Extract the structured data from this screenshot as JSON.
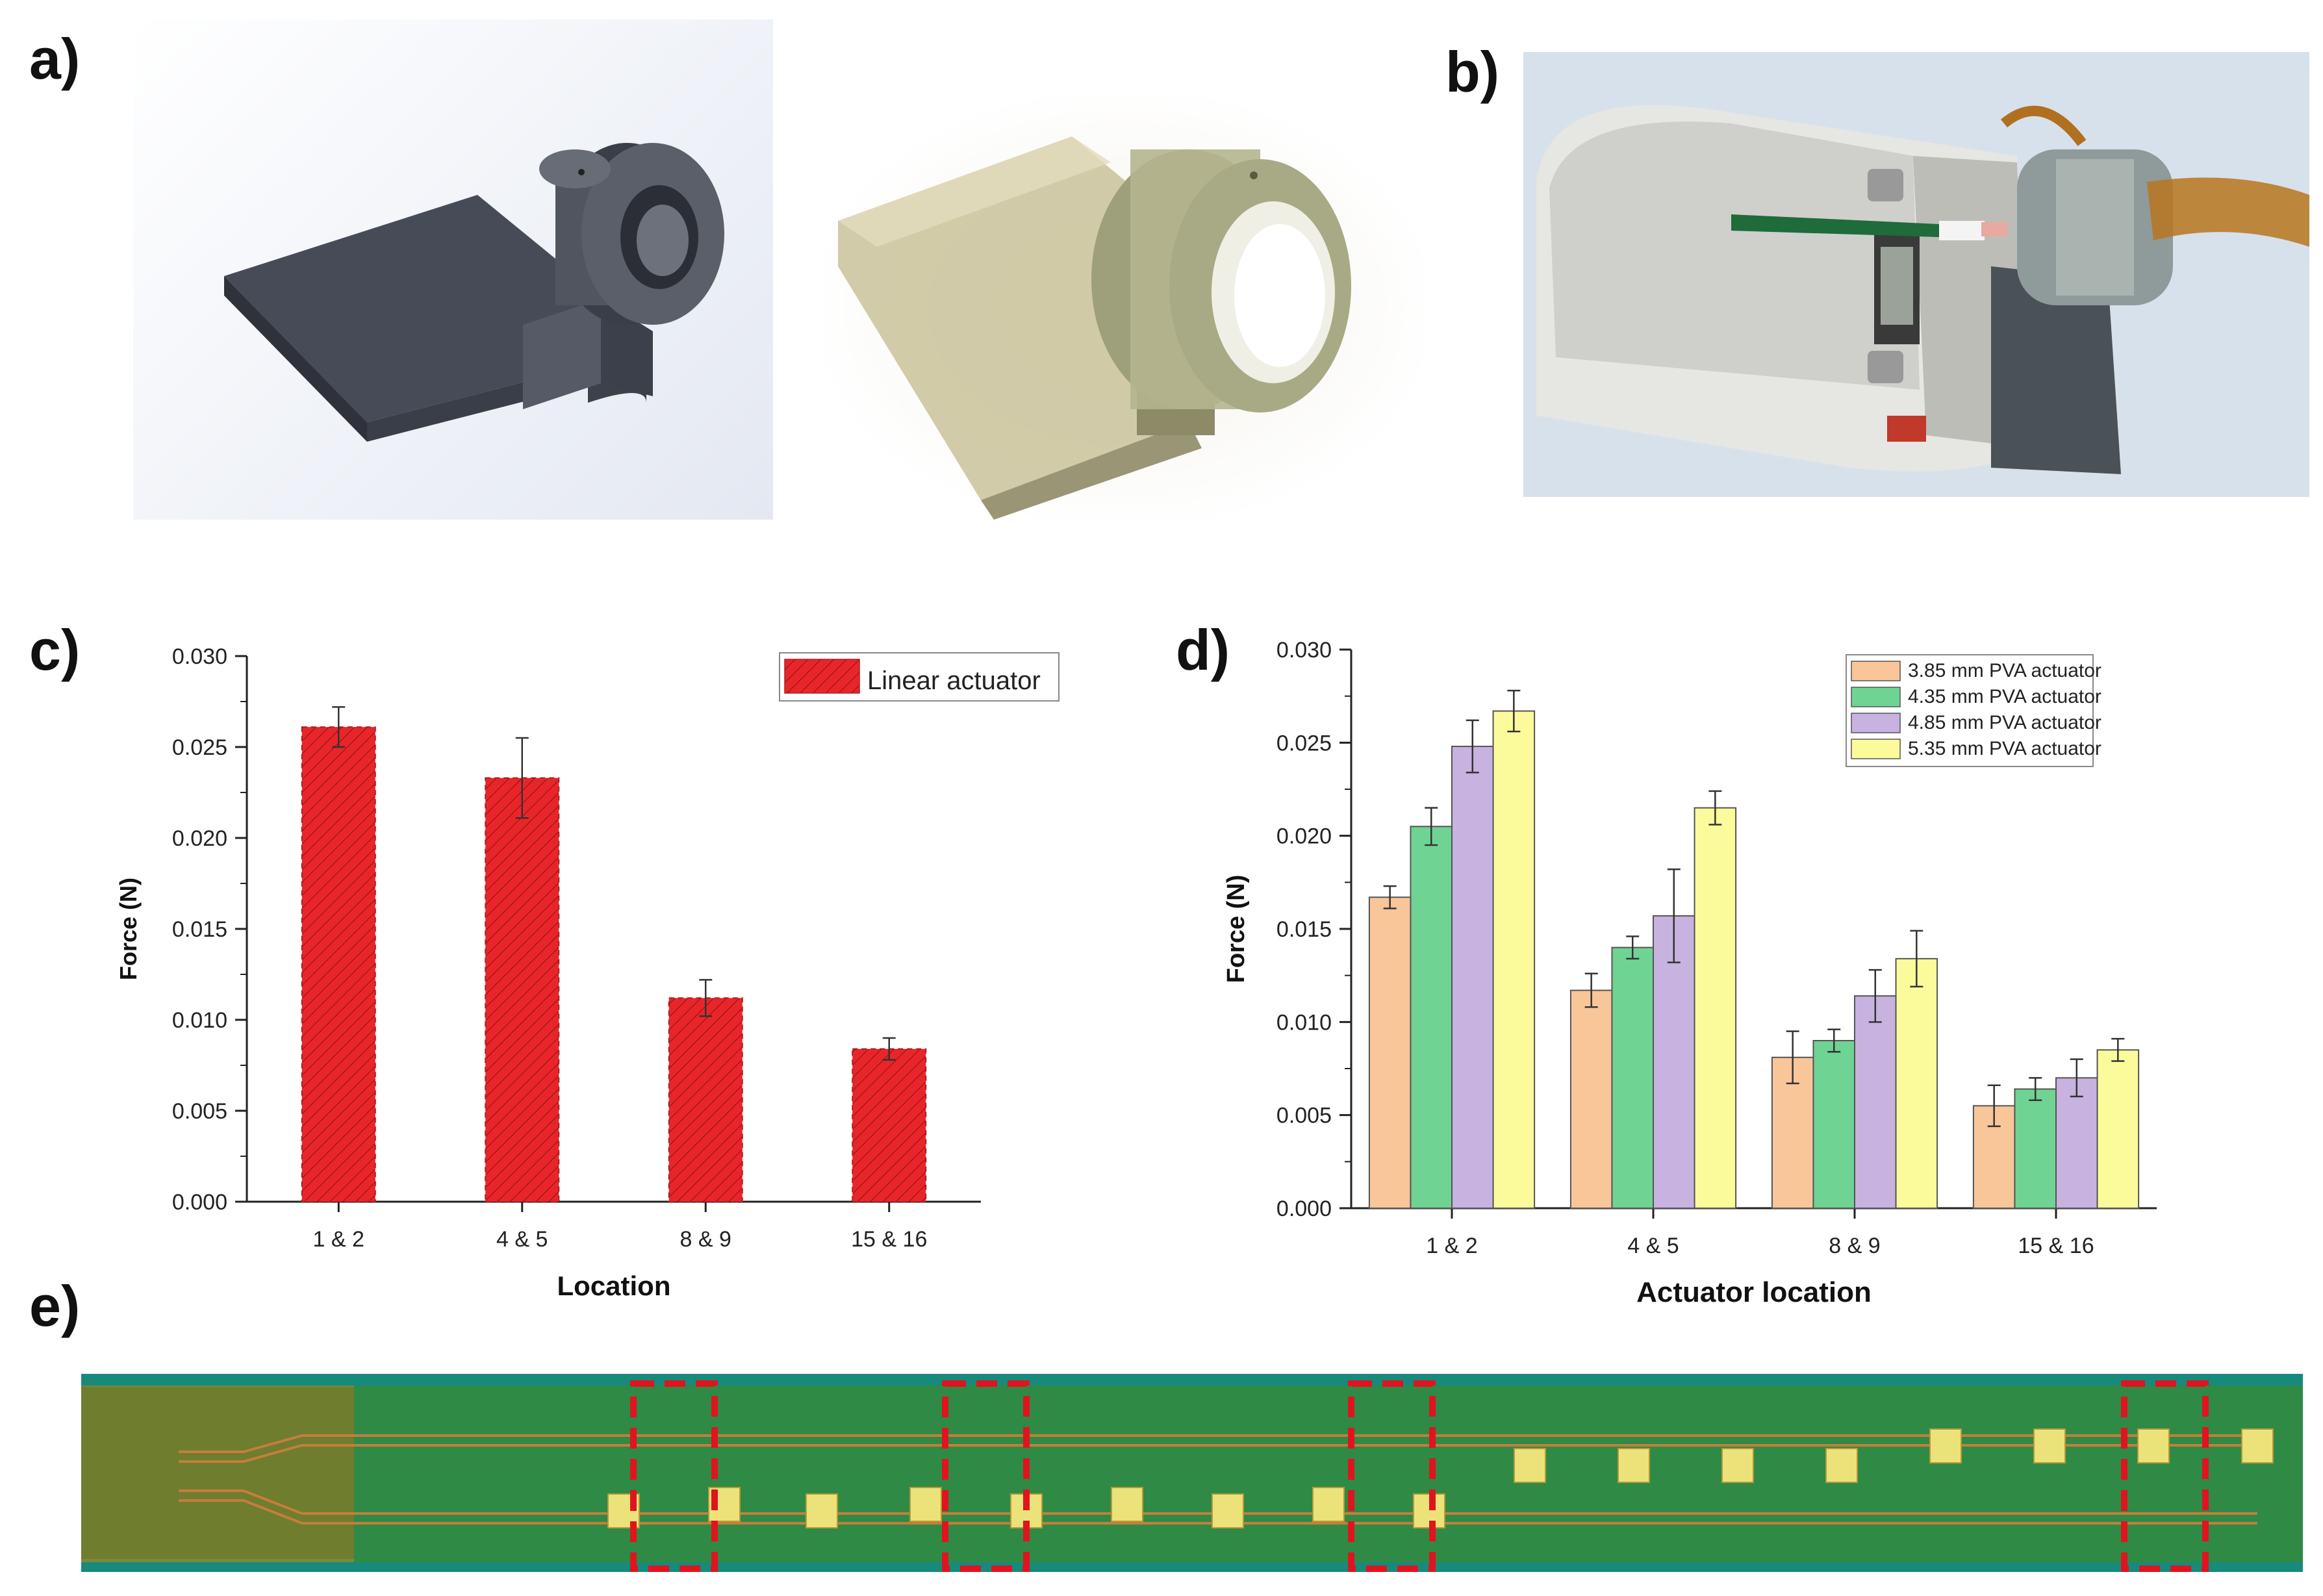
{
  "panels": {
    "a": {
      "label": "a)"
    },
    "b": {
      "label": "b)"
    },
    "c": {
      "label": "c)"
    },
    "d": {
      "label": "d)"
    },
    "e": {
      "label": "e)"
    }
  },
  "chart_data": [
    {
      "panel": "c",
      "type": "bar",
      "categories": [
        "1 & 2",
        "4 & 5",
        "8 & 9",
        "15 & 16"
      ],
      "series": [
        {
          "name": "Linear actuator",
          "values": [
            0.0261,
            0.0233,
            0.0112,
            0.0084
          ],
          "errors": [
            0.0011,
            0.0022,
            0.001,
            0.0006
          ],
          "color": "#e8262a"
        }
      ],
      "xlabel": "Location",
      "ylabel": "Force (N)",
      "ylim": [
        0,
        0.03
      ],
      "yticks": [
        "0.000",
        "0.005",
        "0.010",
        "0.015",
        "0.020",
        "0.025",
        "0.030"
      ],
      "legend_position": "top-right",
      "grid": false
    },
    {
      "panel": "d",
      "type": "bar",
      "categories": [
        "1 & 2",
        "4 & 5",
        "8 & 9",
        "15 & 16"
      ],
      "series": [
        {
          "name": "3.85 mm PVA actuator",
          "values": [
            0.0167,
            0.0117,
            0.0081,
            0.0055
          ],
          "errors": [
            0.0006,
            0.0009,
            0.0014,
            0.0011
          ],
          "color": "#f9c69a"
        },
        {
          "name": "4.35 mm PVA actuator",
          "values": [
            0.0205,
            0.014,
            0.009,
            0.0064
          ],
          "errors": [
            0.001,
            0.0006,
            0.0006,
            0.0006
          ],
          "color": "#6fd393"
        },
        {
          "name": "4.85 mm PVA actuator",
          "values": [
            0.0248,
            0.0157,
            0.0114,
            0.007
          ],
          "errors": [
            0.0014,
            0.0025,
            0.0014,
            0.001
          ],
          "color": "#c7b2e0"
        },
        {
          "name": "5.35 mm PVA actuator",
          "values": [
            0.0267,
            0.0215,
            0.0134,
            0.0085
          ],
          "errors": [
            0.0011,
            0.0009,
            0.0015,
            0.0006
          ],
          "color": "#fbfb9c"
        }
      ],
      "xlabel": "Actuator location",
      "ylabel": "Force (N)",
      "ylim": [
        0,
        0.03
      ],
      "yticks": [
        "0.000",
        "0.005",
        "0.010",
        "0.015",
        "0.020",
        "0.025",
        "0.030"
      ],
      "legend_position": "top-right",
      "grid": false
    }
  ],
  "colors": {
    "highlight_box": "#e0141e",
    "pcb_green": "#2e8a45",
    "pad_yellow": "#ece27a",
    "cad_gray": "#4a4f5c"
  },
  "icons": {
    "panel_a_left": "cad-render-actuator-mount",
    "panel_a_right": "3d-printed-actuator-mount",
    "panel_b": "force-measurement-scale-photo",
    "panel_e": "flexible-pcb-strip-photo"
  }
}
